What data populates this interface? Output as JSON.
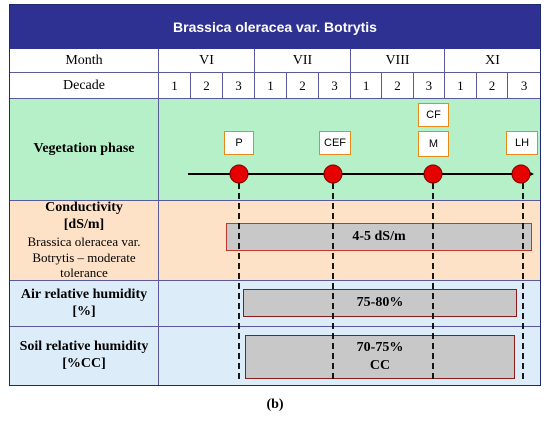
{
  "title": "Brassica oleracea var. Botrytis",
  "header": {
    "month_label": "Month",
    "decade_label": "Decade",
    "months": [
      "VI",
      "VII",
      "VIII",
      "XI"
    ],
    "decades": [
      "1",
      "2",
      "3",
      "1",
      "2",
      "3",
      "1",
      "2",
      "3",
      "1",
      "2",
      "3"
    ]
  },
  "rows": {
    "vegetation": {
      "label": "Vegetation phase",
      "color": "#b6f0c8"
    },
    "conductivity": {
      "label": "Conductivity",
      "unit": "[dS/m]",
      "note": "Brassica oleracea var. Botrytis – moderate tolerance",
      "bar": "4-5 dS/m",
      "color": "#fde2c8"
    },
    "air": {
      "label": "Air relative humidity",
      "unit": "[%]",
      "bar": "75-80%",
      "color": "#dcecf8"
    },
    "soil": {
      "label": "Soil relative humidity",
      "unit": "[%CC]",
      "bar_line1": "70-75%",
      "bar_line2": "CC",
      "color": "#dcecf8"
    }
  },
  "phases": [
    {
      "code": "P"
    },
    {
      "code": "CEF"
    },
    {
      "code": "M",
      "extra": "CF"
    },
    {
      "code": "LH"
    }
  ],
  "colors": {
    "title_bg": "#2e3192",
    "marker": "#e60000",
    "arrow": "#000000",
    "bar_fill": "#c8c8c8"
  },
  "caption": "(b)"
}
